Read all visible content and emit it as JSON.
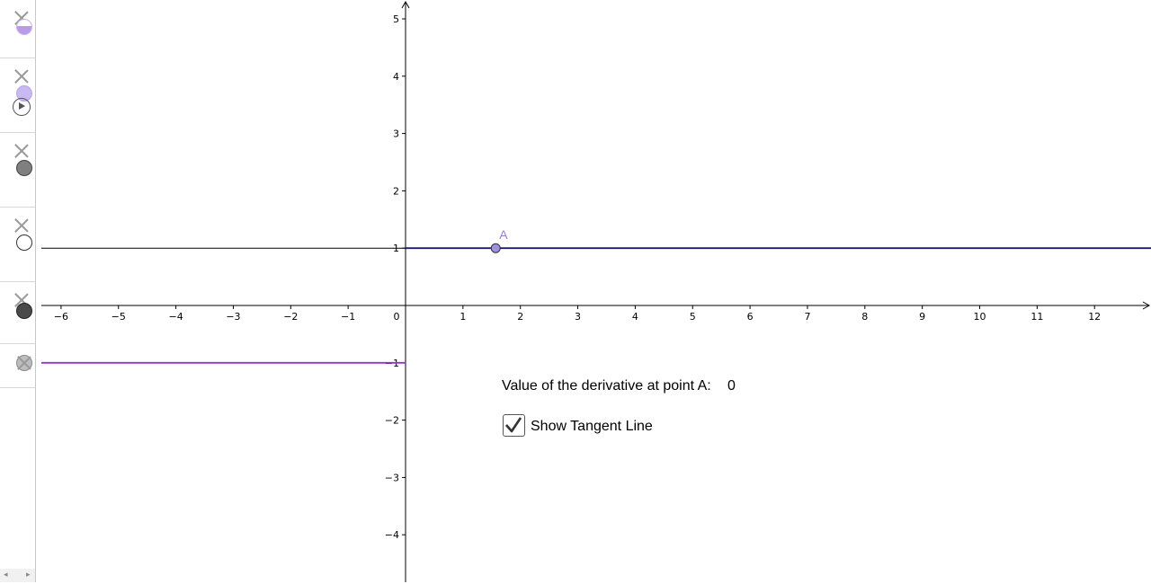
{
  "algebra_view": {
    "items": [
      {
        "icon": "purple-half-disc",
        "color": "#b99be8"
      },
      {
        "icon": "light-purple-disc",
        "color": "#c9b8f2"
      },
      {
        "icon": "dark-grey-disc",
        "color": "#7f7f7f"
      },
      {
        "icon": "white-disc",
        "color": "#ffffff"
      },
      {
        "icon": "quote-disc",
        "color": "#4a4a4a"
      },
      {
        "icon": "hidden-grey-disc",
        "color": "#bdbdbd"
      }
    ],
    "play_icon": "play-icon",
    "scroll_left": "◂",
    "scroll_right": "▸"
  },
  "graph": {
    "x_ticks": [
      "−6",
      "−5",
      "−4",
      "−3",
      "−2",
      "−1",
      "0",
      "1",
      "2",
      "3",
      "4",
      "5",
      "6",
      "7",
      "8",
      "9",
      "10",
      "11",
      "12"
    ],
    "y_ticks": [
      "5",
      "4",
      "3",
      "2",
      "1",
      "−1",
      "−2",
      "−3",
      "−4"
    ],
    "point_label": "A",
    "point": {
      "x": 1.57,
      "y": 1
    },
    "colors": {
      "tangent": "#1a1a7a",
      "function": "#000000",
      "derivative": "#9b30d0",
      "point_fill": "#9f8fe0"
    }
  },
  "derivative_text": "Value of the derivative at point A:",
  "derivative_value": "0",
  "checkbox": {
    "label": "Show Tangent Line",
    "checked": true
  }
}
